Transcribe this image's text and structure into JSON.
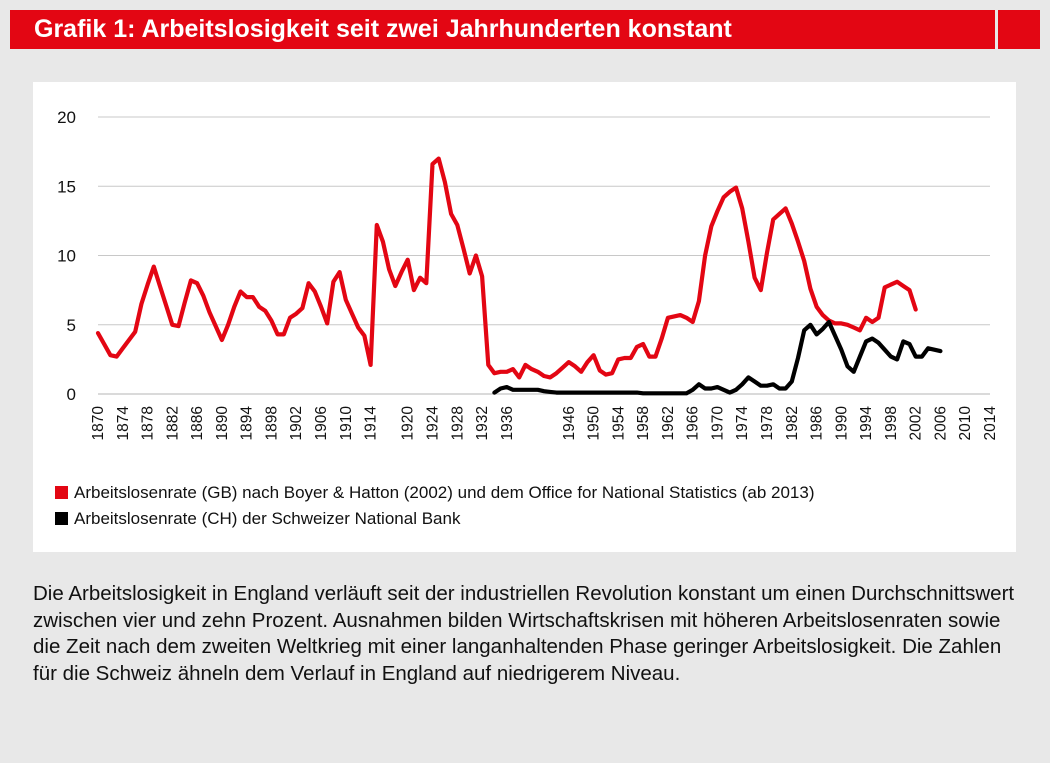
{
  "header": {
    "title": "Grafik 1: Arbeitslosigkeit seit zwei Jahrhunderten konstant"
  },
  "colors": {
    "accent": "#e30613",
    "gb_series": "#e30613",
    "ch_series": "#000000",
    "grid": "#c8c8c8"
  },
  "chart_data": {
    "type": "line",
    "title": "Grafik 1: Arbeitslosigkeit seit zwei Jahrhunderten konstant",
    "xlabel": "",
    "ylabel": "",
    "xlim": [
      1870,
      2014
    ],
    "ylim": [
      0,
      20
    ],
    "yticks": [
      0,
      5,
      10,
      15,
      20
    ],
    "xticks": [
      1870,
      1874,
      1878,
      1882,
      1886,
      1890,
      1894,
      1898,
      1902,
      1906,
      1910,
      1914,
      1920,
      1924,
      1928,
      1932,
      1936,
      1946,
      1950,
      1954,
      1958,
      1962,
      1966,
      1970,
      1974,
      1978,
      1982,
      1986,
      1990,
      1994,
      1998,
      2002,
      2006,
      2010,
      2014
    ],
    "grid": true,
    "legend_position": "bottom-left",
    "series": [
      {
        "name": "Arbeitslosenrate (GB) nach Boyer & Hatton (2002) und dem Office for National Statistics (ab 2013)",
        "color": "#e30613",
        "points": [
          [
            1870,
            4.4
          ],
          [
            1871,
            3.6
          ],
          [
            1872,
            2.8
          ],
          [
            1873,
            2.7
          ],
          [
            1874,
            3.3
          ],
          [
            1875,
            3.9
          ],
          [
            1876,
            4.5
          ],
          [
            1877,
            6.5
          ],
          [
            1878,
            7.9
          ],
          [
            1879,
            9.2
          ],
          [
            1880,
            7.8
          ],
          [
            1881,
            6.4
          ],
          [
            1882,
            5.0
          ],
          [
            1883,
            4.9
          ],
          [
            1884,
            6.6
          ],
          [
            1885,
            8.2
          ],
          [
            1886,
            8.0
          ],
          [
            1887,
            7.1
          ],
          [
            1888,
            5.9
          ],
          [
            1889,
            4.9
          ],
          [
            1890,
            3.9
          ],
          [
            1891,
            5.0
          ],
          [
            1892,
            6.3
          ],
          [
            1893,
            7.4
          ],
          [
            1894,
            7.0
          ],
          [
            1895,
            7.0
          ],
          [
            1896,
            6.3
          ],
          [
            1897,
            6.0
          ],
          [
            1898,
            5.3
          ],
          [
            1899,
            4.3
          ],
          [
            1900,
            4.3
          ],
          [
            1901,
            5.5
          ],
          [
            1902,
            5.8
          ],
          [
            1903,
            6.2
          ],
          [
            1904,
            8.0
          ],
          [
            1905,
            7.4
          ],
          [
            1906,
            6.3
          ],
          [
            1907,
            5.1
          ],
          [
            1908,
            8.1
          ],
          [
            1909,
            8.8
          ],
          [
            1910,
            6.8
          ],
          [
            1911,
            5.8
          ],
          [
            1912,
            4.8
          ],
          [
            1913,
            4.2
          ],
          [
            1914,
            2.1
          ],
          [
            1915,
            12.2
          ],
          [
            1916,
            11.0
          ],
          [
            1917,
            9.0
          ],
          [
            1918,
            7.8
          ],
          [
            1919,
            8.8
          ],
          [
            1920,
            9.7
          ],
          [
            1921,
            7.5
          ],
          [
            1922,
            8.4
          ],
          [
            1923,
            8.0
          ],
          [
            1924,
            16.6
          ],
          [
            1925,
            17.0
          ],
          [
            1926,
            15.3
          ],
          [
            1927,
            13.0
          ],
          [
            1928,
            12.2
          ],
          [
            1929,
            10.5
          ],
          [
            1930,
            8.7
          ],
          [
            1931,
            10.0
          ],
          [
            1932,
            8.5
          ],
          [
            1933,
            2.1
          ],
          [
            1934,
            1.5
          ],
          [
            1935,
            1.6
          ],
          [
            1936,
            1.6
          ],
          [
            1937,
            1.8
          ],
          [
            1938,
            1.2
          ],
          [
            1939,
            2.1
          ],
          [
            1940,
            1.8
          ],
          [
            1941,
            1.6
          ],
          [
            1942,
            1.3
          ],
          [
            1943,
            1.2
          ],
          [
            1944,
            1.5
          ],
          [
            1945,
            1.9
          ],
          [
            1946,
            2.3
          ],
          [
            1947,
            2.0
          ],
          [
            1948,
            1.6
          ],
          [
            1949,
            2.3
          ],
          [
            1950,
            2.8
          ],
          [
            1951,
            1.7
          ],
          [
            1952,
            1.4
          ],
          [
            1953,
            1.5
          ],
          [
            1954,
            2.5
          ],
          [
            1955,
            2.6
          ],
          [
            1956,
            2.6
          ],
          [
            1957,
            3.4
          ],
          [
            1958,
            3.6
          ],
          [
            1959,
            2.7
          ],
          [
            1960,
            2.7
          ],
          [
            1961,
            4.0
          ],
          [
            1962,
            5.5
          ],
          [
            1963,
            5.6
          ],
          [
            1964,
            5.7
          ],
          [
            1965,
            5.5
          ],
          [
            1966,
            5.2
          ],
          [
            1967,
            6.7
          ],
          [
            1968,
            10.0
          ],
          [
            1969,
            12.1
          ],
          [
            1970,
            13.2
          ],
          [
            1971,
            14.2
          ],
          [
            1972,
            14.6
          ],
          [
            1973,
            14.9
          ],
          [
            1974,
            13.4
          ],
          [
            1975,
            11.0
          ],
          [
            1976,
            8.4
          ],
          [
            1977,
            7.5
          ],
          [
            1978,
            10.2
          ],
          [
            1979,
            12.6
          ],
          [
            1980,
            13.0
          ],
          [
            1981,
            13.4
          ],
          [
            1982,
            12.3
          ],
          [
            1983,
            11.0
          ],
          [
            1984,
            9.6
          ],
          [
            1985,
            7.6
          ],
          [
            1986,
            6.3
          ],
          [
            1987,
            5.7
          ],
          [
            1988,
            5.3
          ],
          [
            1989,
            5.1
          ],
          [
            1990,
            5.1
          ],
          [
            1991,
            5.0
          ],
          [
            1992,
            4.8
          ],
          [
            1993,
            4.6
          ],
          [
            1994,
            5.5
          ],
          [
            1995,
            5.2
          ],
          [
            1996,
            5.5
          ],
          [
            1997,
            7.7
          ],
          [
            1998,
            7.9
          ],
          [
            1999,
            8.1
          ],
          [
            2000,
            7.8
          ],
          [
            2001,
            7.5
          ],
          [
            2002,
            6.1
          ]
        ]
      },
      {
        "name": "Arbeitslosenrate (CH) der Schweizer National Bank",
        "color": "#000000",
        "points": [
          [
            1934,
            0.1
          ],
          [
            1935,
            0.4
          ],
          [
            1936,
            0.5
          ],
          [
            1937,
            0.3
          ],
          [
            1938,
            0.3
          ],
          [
            1939,
            0.3
          ],
          [
            1940,
            0.3
          ],
          [
            1941,
            0.3
          ],
          [
            1942,
            0.2
          ],
          [
            1943,
            0.15
          ],
          [
            1944,
            0.1
          ],
          [
            1945,
            0.1
          ],
          [
            1946,
            0.1
          ],
          [
            1947,
            0.1
          ],
          [
            1948,
            0.1
          ],
          [
            1949,
            0.1
          ],
          [
            1950,
            0.1
          ],
          [
            1951,
            0.1
          ],
          [
            1952,
            0.1
          ],
          [
            1953,
            0.1
          ],
          [
            1954,
            0.1
          ],
          [
            1955,
            0.1
          ],
          [
            1956,
            0.1
          ],
          [
            1957,
            0.1
          ],
          [
            1958,
            0.05
          ],
          [
            1959,
            0.05
          ],
          [
            1960,
            0.05
          ],
          [
            1961,
            0.05
          ],
          [
            1962,
            0.05
          ],
          [
            1963,
            0.05
          ],
          [
            1964,
            0.05
          ],
          [
            1965,
            0.05
          ],
          [
            1966,
            0.3
          ],
          [
            1967,
            0.7
          ],
          [
            1968,
            0.4
          ],
          [
            1969,
            0.4
          ],
          [
            1970,
            0.5
          ],
          [
            1971,
            0.3
          ],
          [
            1972,
            0.1
          ],
          [
            1973,
            0.3
          ],
          [
            1974,
            0.7
          ],
          [
            1975,
            1.2
          ],
          [
            1976,
            0.9
          ],
          [
            1977,
            0.6
          ],
          [
            1978,
            0.6
          ],
          [
            1979,
            0.7
          ],
          [
            1980,
            0.4
          ],
          [
            1981,
            0.4
          ],
          [
            1982,
            0.9
          ],
          [
            1983,
            2.6
          ],
          [
            1984,
            4.6
          ],
          [
            1985,
            5.0
          ],
          [
            1986,
            4.3
          ],
          [
            1987,
            4.7
          ],
          [
            1988,
            5.2
          ],
          [
            1989,
            4.2
          ],
          [
            1990,
            3.2
          ],
          [
            1991,
            2.0
          ],
          [
            1992,
            1.6
          ],
          [
            1993,
            2.7
          ],
          [
            1994,
            3.8
          ],
          [
            1995,
            4.0
          ],
          [
            1996,
            3.7
          ],
          [
            1997,
            3.2
          ],
          [
            1998,
            2.7
          ],
          [
            1999,
            2.5
          ],
          [
            2000,
            3.8
          ],
          [
            2001,
            3.6
          ],
          [
            2002,
            2.7
          ],
          [
            2003,
            2.7
          ],
          [
            2004,
            3.3
          ],
          [
            2005,
            3.2
          ],
          [
            2006,
            3.1
          ]
        ]
      }
    ]
  },
  "legend": [
    {
      "label": "Arbeitslosenrate (GB) nach Boyer & Hatton (2002) und dem Office for National Statistics (ab 2013)",
      "color": "#e30613"
    },
    {
      "label": "Arbeitslosenrate (CH) der Schweizer National Bank",
      "color": "#000000"
    }
  ],
  "caption": "Die Arbeitslosigkeit in England verläuft seit der industriellen Revolution konstant um einen Durchschnittswert zwischen vier und zehn Prozent. Ausnahmen bilden Wirtschafts­krisen mit höheren Arbeitslosenraten sowie die Zeit nach dem zweiten Weltkrieg mit einer langanhaltenden Phase geringer Arbeitslosigkeit. Die Zahlen für die Schweiz ähneln dem Verlauf in England auf niedrigerem Niveau."
}
